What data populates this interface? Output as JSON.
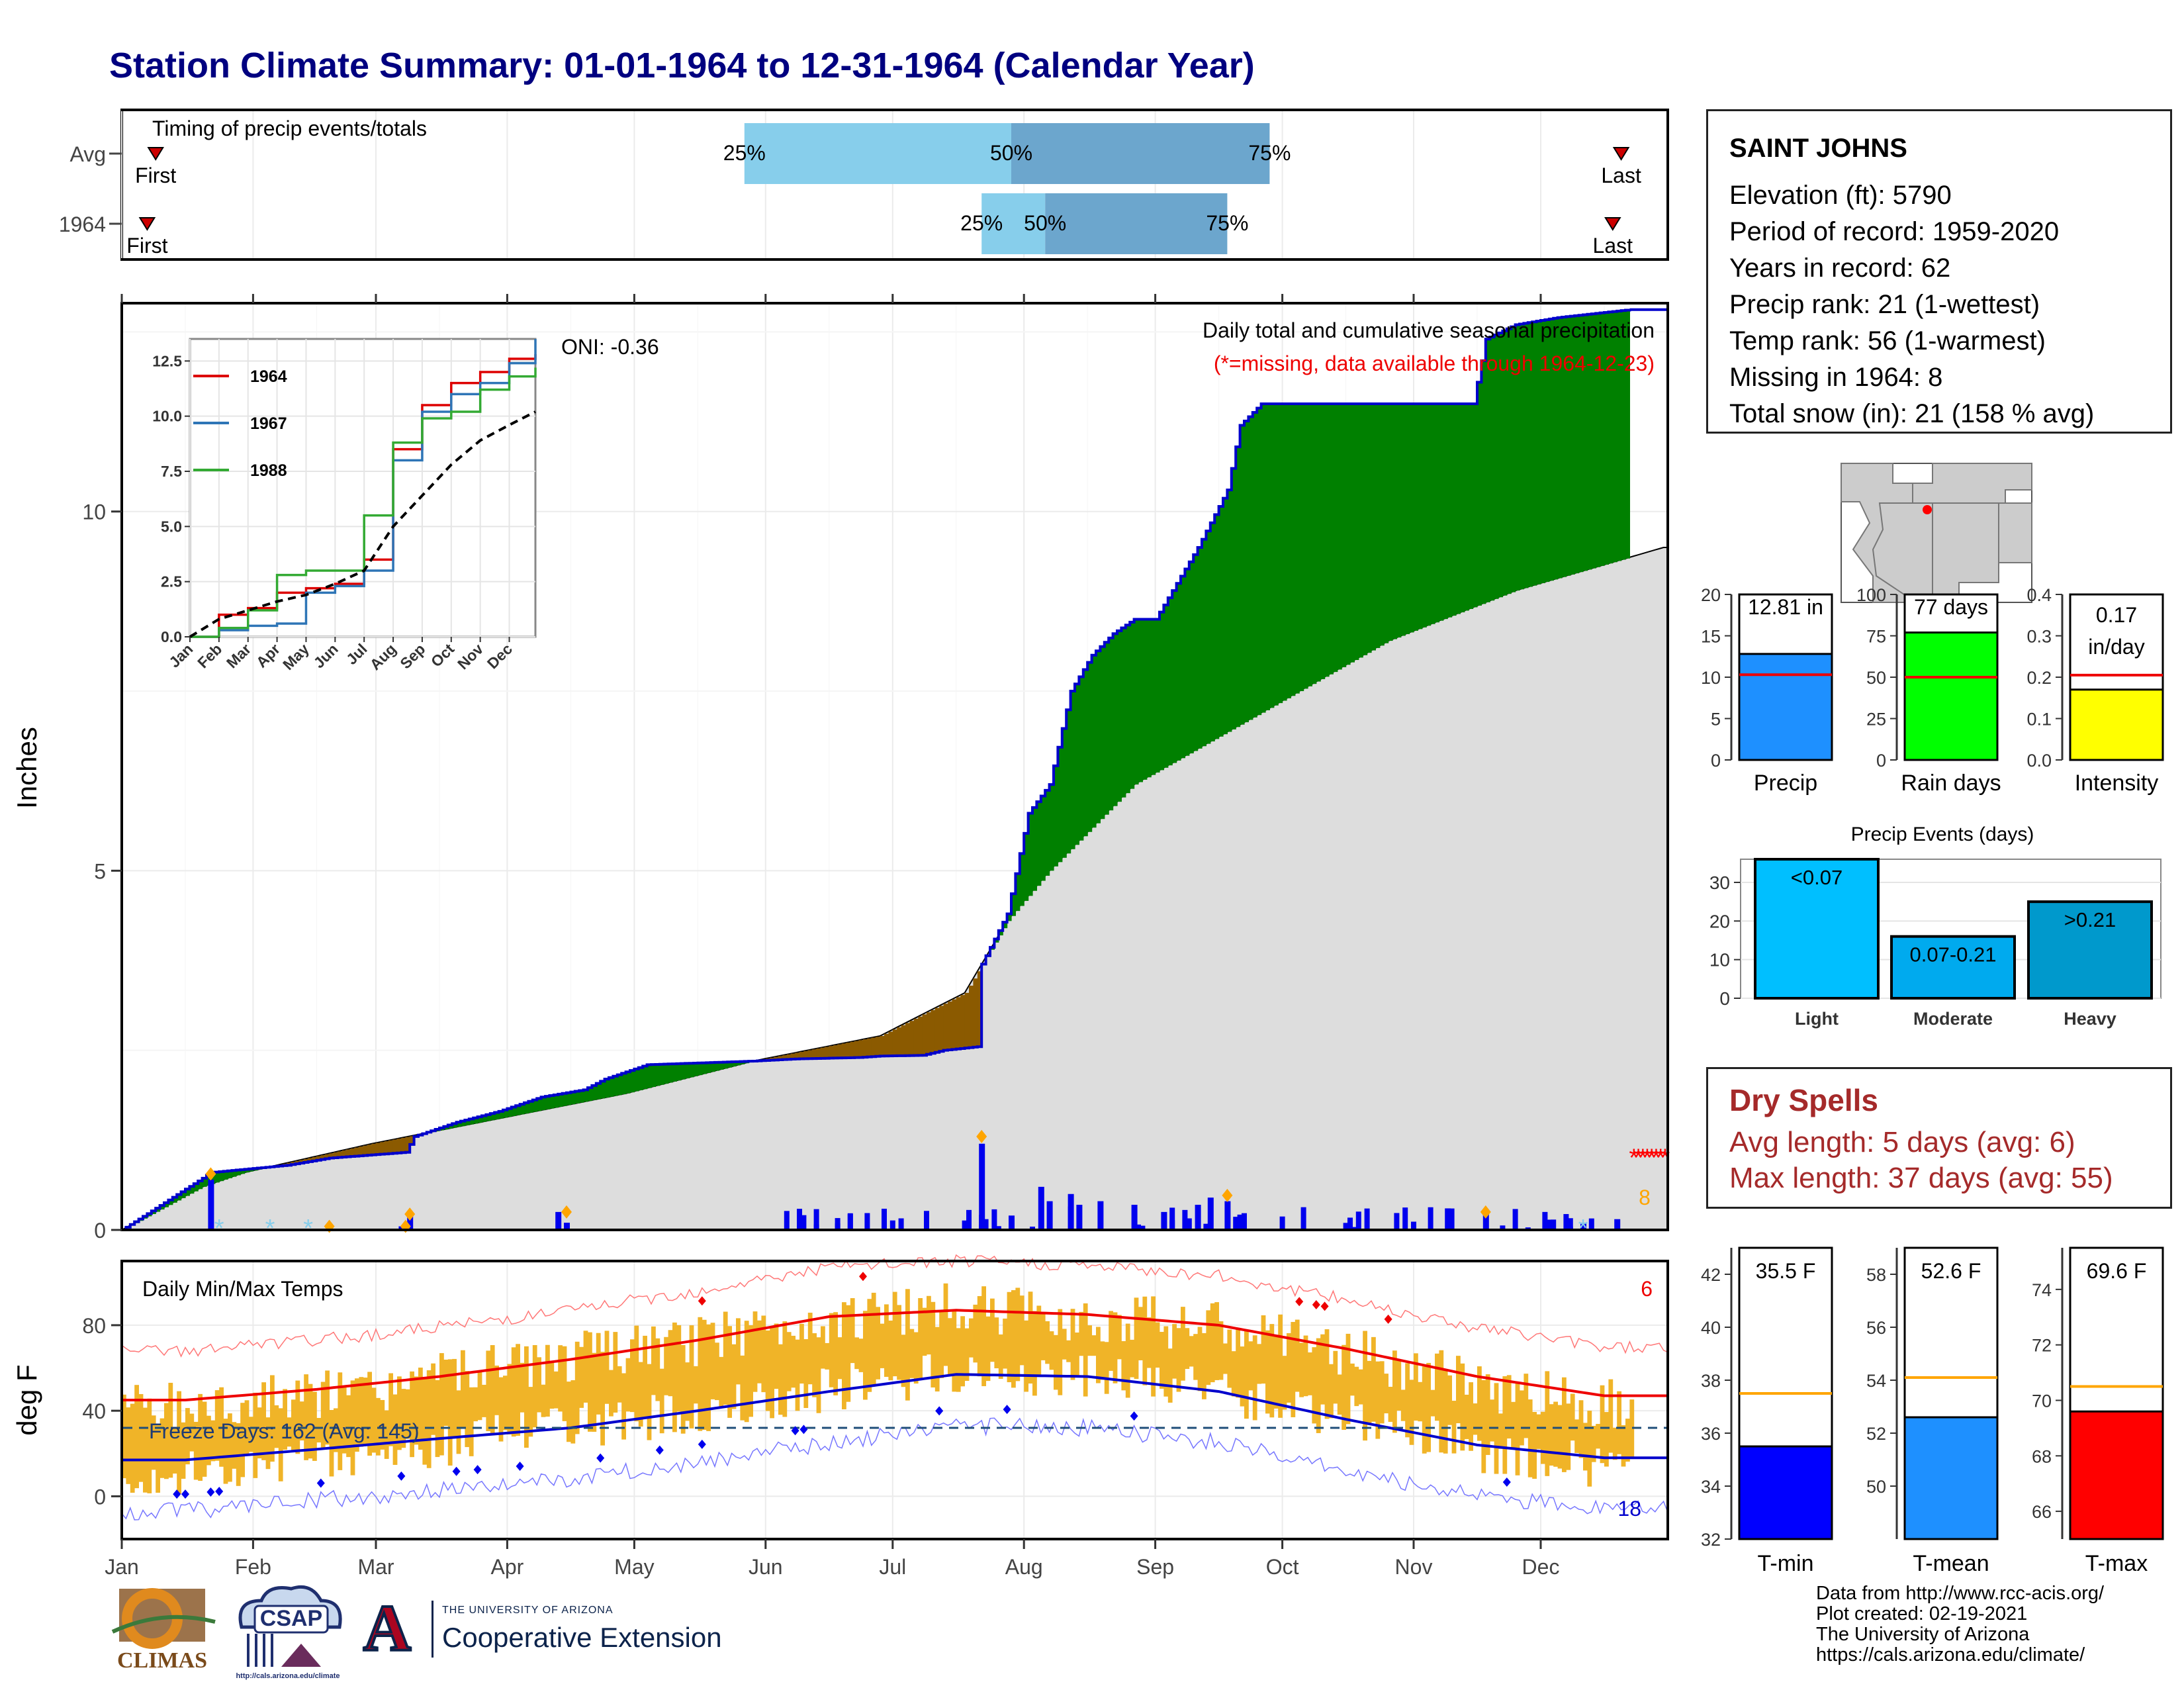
{
  "title": "Station Climate Summary: 01-01-1964 to 12-31-1964 (Calendar Year)",
  "colors": {
    "title": "#000080",
    "above_avg_fill": "#008000",
    "below_avg_fill": "#8B5A00",
    "cumulative_avg_fill": "#DDDDDD",
    "precip_line": "#0000CC",
    "missing": "#FF0000",
    "temp_bar": "#F0B428",
    "tmax_line": "#EE0000",
    "tmin_line": "#0000CC",
    "snow_marker": "#87CEEB",
    "heavy_marker": "#FFA500"
  },
  "timing": {
    "label": "Timing of precip events/totals",
    "rows": [
      {
        "name": "Avg",
        "first": "First",
        "last": "Last",
        "p25": "25%",
        "p50": "50%",
        "p75": "75%",
        "first_doy": 9,
        "p25_doy": 148,
        "p50_doy": 211,
        "p75_doy": 272,
        "last_doy": 355
      },
      {
        "name": "1964",
        "first": "First",
        "last": "Last",
        "p25": "25%",
        "p50": "50%",
        "p75": "75%",
        "first_doy": 7,
        "p25_doy": 204,
        "p50_doy": 219,
        "p75_doy": 262,
        "last_doy": 353
      }
    ]
  },
  "precip": {
    "ylabel": "Inches",
    "title": "Daily total and cumulative seasonal precipitation",
    "missing_note": "(*=missing, data available through 1964-12-23)",
    "oni": "ONI: -0.36",
    "missing_count": "8",
    "yticks": [
      "0",
      "5",
      "10"
    ],
    "months": [
      "Jan",
      "Feb",
      "Mar",
      "Apr",
      "May",
      "Jun",
      "Jul",
      "Aug",
      "Sep",
      "Oct",
      "Nov",
      "Dec"
    ]
  },
  "inset": {
    "yticks": [
      "0.0",
      "2.5",
      "5.0",
      "7.5",
      "10.0",
      "12.5"
    ],
    "months": [
      "Jan",
      "Feb",
      "Mar",
      "Apr",
      "May",
      "Jun",
      "Jul",
      "Aug",
      "Sep",
      "Oct",
      "Nov",
      "Dec"
    ],
    "legend": [
      {
        "name": "1964",
        "color": "#DD0000"
      },
      {
        "name": "1967",
        "color": "#2E75B6"
      },
      {
        "name": "1988",
        "color": "#33AA33"
      }
    ]
  },
  "temps": {
    "ylabel": "deg F",
    "title": "Daily Min/Max Temps",
    "freeze": "Freeze Days: 162 (Avg: 145)",
    "record_high_count": "6",
    "record_low_count": "18",
    "yticks": [
      "0",
      "40",
      "80"
    ],
    "months": [
      "Jan",
      "Feb",
      "Mar",
      "Apr",
      "May",
      "Jun",
      "Jul",
      "Aug",
      "Sep",
      "Oct",
      "Nov",
      "Dec"
    ]
  },
  "station": {
    "name": "SAINT JOHNS",
    "lines": [
      "Elevation (ft): 5790",
      "Period of record: 1959-2020",
      "Years in record: 62",
      "Precip rank: 21 (1-wettest)",
      "Temp rank: 56 (1-warmest)",
      "Missing in 1964: 8",
      "Total snow (in): 21 (158 % avg)"
    ]
  },
  "summary_bars": [
    {
      "label": "Precip",
      "value_label": "12.81 in",
      "value": 12.81,
      "avg": 10.3,
      "max": 20,
      "ticks": [
        "0",
        "5",
        "10",
        "15",
        "20"
      ],
      "color": "#1E90FF"
    },
    {
      "label": "Rain days",
      "value_label": "77 days",
      "value": 77,
      "avg": 50,
      "max": 100,
      "ticks": [
        "0",
        "25",
        "50",
        "75",
        "100"
      ],
      "color": "#00FF00"
    },
    {
      "label": "Intensity",
      "value_label": "0.17",
      "value_label2": "in/day",
      "value": 0.17,
      "avg": 0.205,
      "max": 0.4,
      "ticks": [
        "0.0",
        "0.1",
        "0.2",
        "0.3",
        "0.4"
      ],
      "color": "#FFFF00"
    }
  ],
  "events": {
    "title": "Precip Events (days)",
    "yticks": [
      "0",
      "10",
      "20",
      "30"
    ],
    "bars": [
      {
        "label": "Light",
        "value_label": "<0.07",
        "value": 36,
        "color": "#00BFFF"
      },
      {
        "label": "Moderate",
        "value_label": "0.07-0.21",
        "value": 16,
        "color": "#00AAEE"
      },
      {
        "label": "Heavy",
        "value_label": ">0.21",
        "value": 25,
        "color": "#0099CC"
      }
    ]
  },
  "dry_spells": {
    "title": "Dry Spells",
    "avg_line": "Avg length: 5 days (avg: 6)",
    "max_line": "Max length: 37 days (avg: 55)"
  },
  "temp_bars": [
    {
      "label": "T-min",
      "value_label": "35.5 F",
      "value": 35.5,
      "avg": 37.5,
      "min": 32,
      "max": 43,
      "ticks": [
        "32",
        "34",
        "36",
        "38",
        "40",
        "42"
      ],
      "color": "#0000FF"
    },
    {
      "label": "T-mean",
      "value_label": "52.6 F",
      "value": 52.6,
      "avg": 54.1,
      "min": 48,
      "max": 59,
      "ticks": [
        "50",
        "52",
        "54",
        "56",
        "58"
      ],
      "color": "#1E90FF"
    },
    {
      "label": "T-max",
      "value_label": "69.6 F",
      "value": 69.6,
      "avg": 70.5,
      "min": 65,
      "max": 75.5,
      "ticks": [
        "66",
        "68",
        "70",
        "72",
        "74"
      ],
      "color": "#FF0000"
    }
  ],
  "credits": [
    "Data from http://www.rcc-acis.org/",
    "Plot created: 02-19-2021",
    "The University of Arizona",
    "https://cals.arizona.edu/climate/"
  ],
  "logos": {
    "climas": "CLIMAS",
    "csap": "CSAP",
    "csap_url": "http://cals.arizona.edu/climate",
    "ua_letter": "A",
    "ua_small": "THE UNIVERSITY OF ARIZONA",
    "ua_big": "Cooperative Extension"
  },
  "chart_data": [
    {
      "type": "line",
      "name": "cumulative-precip",
      "title": "Daily total and cumulative seasonal precipitation",
      "ylabel": "Inches",
      "ylim": [
        0,
        12.9
      ],
      "xlim_doy": [
        1,
        366
      ],
      "observed_cumulative": {
        "doy": [
          1,
          20,
          22,
          40,
          50,
          68,
          70,
          80,
          90,
          100,
          110,
          115,
          120,
          125,
          150,
          160,
          175,
          180,
          190,
          195,
          203,
          204,
          210,
          215,
          220,
          225,
          230,
          235,
          240,
          245,
          255,
          262,
          265,
          270,
          275,
          280,
          285,
          290,
          300,
          310,
          320,
          323,
          330,
          340,
          357
        ],
        "inches": [
          0,
          0.72,
          0.8,
          0.9,
          1.0,
          1.08,
          1.3,
          1.5,
          1.65,
          1.85,
          1.95,
          2.1,
          2.2,
          2.3,
          2.35,
          2.38,
          2.4,
          2.42,
          2.43,
          2.5,
          2.55,
          3.7,
          4.4,
          5.8,
          6.2,
          7.5,
          8.0,
          8.3,
          8.5,
          8.5,
          9.5,
          10.3,
          11.2,
          11.5,
          11.5,
          11.5,
          11.5,
          11.5,
          11.5,
          11.5,
          11.5,
          12.4,
          12.6,
          12.7,
          12.81
        ]
      },
      "average_cumulative": {
        "doy": [
          1,
          20,
          30,
          60,
          90,
          120,
          150,
          180,
          200,
          210,
          220,
          240,
          270,
          300,
          330,
          365
        ],
        "inches": [
          0,
          0.6,
          0.8,
          1.2,
          1.55,
          1.9,
          2.35,
          2.7,
          3.3,
          4.3,
          5.0,
          6.2,
          7.2,
          8.2,
          8.9,
          9.5
        ]
      },
      "daily_bars": [
        [
          22,
          0.7
        ],
        [
          67,
          0.05
        ],
        [
          69,
          0.2
        ],
        [
          104,
          0.25
        ],
        [
          106,
          0.1
        ],
        [
          204,
          1.2
        ],
        [
          211,
          0.2
        ],
        [
          218,
          0.6
        ],
        [
          220,
          0.4
        ],
        [
          225,
          0.5
        ],
        [
          227,
          0.35
        ],
        [
          232,
          0.4
        ],
        [
          240,
          0.35
        ],
        [
          247,
          0.25
        ],
        [
          255,
          0.35
        ],
        [
          258,
          0.45
        ],
        [
          262,
          0.4
        ],
        [
          314,
          0.3
        ],
        [
          323,
          0.25
        ],
        [
          346,
          0.1
        ],
        [
          354,
          0.15
        ]
      ],
      "missing_days": 8,
      "oni": -0.36
    },
    {
      "type": "line",
      "name": "inset-analog-years",
      "series": [
        {
          "name": "1964",
          "month": [
            1,
            2,
            3,
            4,
            5,
            6,
            7,
            8,
            9,
            10,
            11,
            12,
            12.9
          ],
          "inches": [
            0,
            1.0,
            1.3,
            2.0,
            2.2,
            2.4,
            3.5,
            8.5,
            10.5,
            11.5,
            12.0,
            12.6,
            12.81
          ]
        },
        {
          "name": "1967",
          "month": [
            1,
            2,
            3,
            4,
            5,
            6,
            7,
            8,
            9,
            10,
            11,
            12,
            12.9
          ],
          "inches": [
            0,
            0.3,
            0.5,
            0.6,
            2.0,
            2.3,
            3.0,
            8.0,
            10.2,
            11.0,
            11.5,
            12.4,
            13.5
          ]
        },
        {
          "name": "1988",
          "month": [
            1,
            2,
            3,
            4,
            5,
            6,
            7,
            8,
            9,
            10,
            11,
            12,
            12.9
          ],
          "inches": [
            0,
            0.4,
            1.2,
            2.8,
            3.0,
            3.0,
            5.5,
            8.8,
            9.9,
            10.2,
            11.2,
            11.8,
            12.2
          ]
        },
        {
          "name": "",
          "month": [
            1,
            2,
            3,
            4,
            5,
            6,
            7,
            8,
            9,
            10,
            11,
            12,
            12.9
          ],
          "inches": [
            0,
            0.8,
            1.2,
            1.6,
            1.9,
            2.4,
            3.0,
            5.0,
            6.4,
            7.8,
            8.9,
            9.6,
            10.2
          ]
        }
      ],
      "ylim": [
        0,
        13.5
      ]
    },
    {
      "type": "bar",
      "name": "daily-temps",
      "title": "Daily Min/Max Temps",
      "ylabel": "deg F",
      "ylim": [
        -20,
        110
      ],
      "normal_tmax_monthly": [
        45,
        50,
        56,
        64,
        73,
        84,
        87,
        85,
        80,
        69,
        56,
        47
      ],
      "normal_tmin_monthly": [
        17,
        22,
        27,
        32,
        40,
        49,
        57,
        56,
        49,
        36,
        24,
        18
      ],
      "observed_tmax_monthly": [
        42,
        47,
        55,
        65,
        72,
        84,
        89,
        84,
        79,
        68,
        52,
        44
      ],
      "observed_tmin_monthly": [
        12,
        16,
        24,
        32,
        40,
        50,
        58,
        57,
        48,
        38,
        22,
        14
      ],
      "freeze_threshold": 32,
      "record_highs": 6,
      "record_lows": 18
    },
    {
      "type": "bar",
      "name": "precip-events",
      "categories": [
        "Light",
        "Moderate",
        "Heavy"
      ],
      "values": [
        36,
        16,
        25
      ],
      "ylim": [
        0,
        36
      ]
    }
  ]
}
